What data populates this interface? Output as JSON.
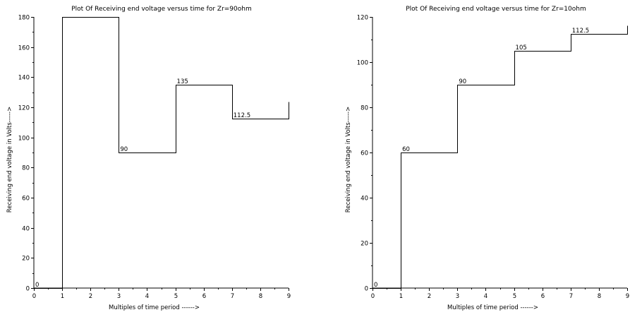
{
  "chart_data": [
    {
      "type": "line",
      "step": true,
      "title": "Plot Of Receiving end voltage versus time for Zr=90ohm",
      "xlabel": "Multiples of time period ------>",
      "ylabel": "Receiving end voltage in Volts----->",
      "xlim": [
        0,
        9
      ],
      "ylim": [
        0,
        180
      ],
      "xticks": [
        0,
        1,
        2,
        3,
        4,
        5,
        6,
        7,
        8,
        9
      ],
      "yticks": [
        0,
        20,
        40,
        60,
        80,
        100,
        120,
        140,
        160,
        180
      ],
      "x": [
        0,
        1,
        3,
        5,
        7,
        9
      ],
      "y": [
        0,
        180,
        90,
        135,
        112.5,
        123.75
      ],
      "labels": [
        {
          "x": 0,
          "y": 0,
          "text": "0"
        },
        {
          "x": 3,
          "y": 90,
          "text": "90"
        },
        {
          "x": 5,
          "y": 135,
          "text": "135"
        },
        {
          "x": 7,
          "y": 112.5,
          "text": "112.5"
        }
      ],
      "grid": false
    },
    {
      "type": "line",
      "step": true,
      "title": "Plot Of Receiving end voltage versus time for Zr=10ohm",
      "xlabel": "Multiples of time period ------>",
      "ylabel": "Receiving end voltage in Volts----->",
      "xlim": [
        0,
        9
      ],
      "ylim": [
        0,
        120
      ],
      "xticks": [
        0,
        1,
        2,
        3,
        4,
        5,
        6,
        7,
        8,
        9
      ],
      "yticks": [
        0,
        20,
        40,
        60,
        80,
        100,
        120
      ],
      "x": [
        0,
        1,
        3,
        5,
        7,
        9
      ],
      "y": [
        0,
        60,
        90,
        105,
        112.5,
        116.25
      ],
      "labels": [
        {
          "x": 0,
          "y": 0,
          "text": "0"
        },
        {
          "x": 1,
          "y": 60,
          "text": "60"
        },
        {
          "x": 3,
          "y": 90,
          "text": "90"
        },
        {
          "x": 5,
          "y": 105,
          "text": "105"
        },
        {
          "x": 7,
          "y": 112.5,
          "text": "112.5"
        }
      ],
      "grid": false
    }
  ]
}
